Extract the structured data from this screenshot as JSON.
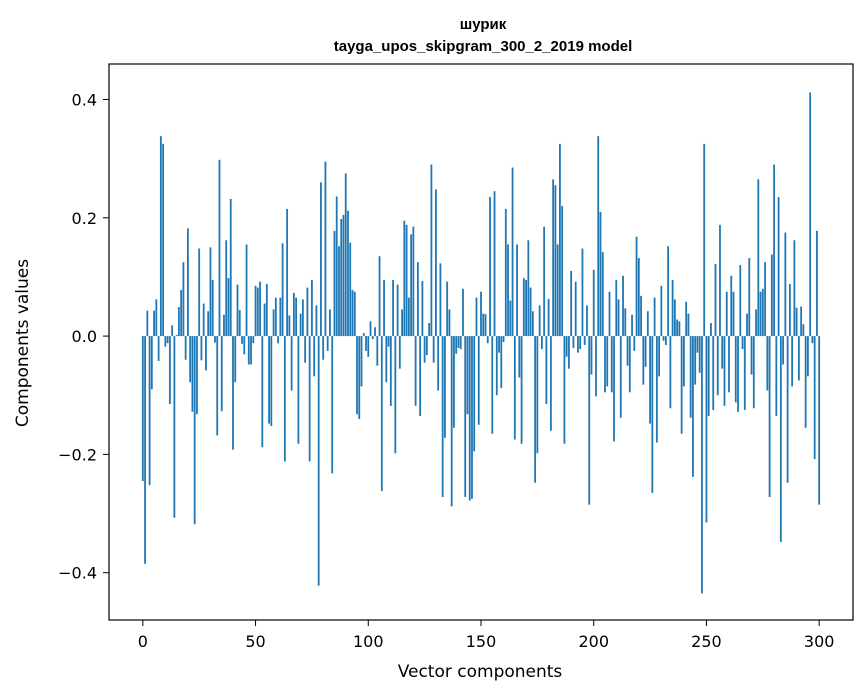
{
  "chart_data": {
    "type": "bar",
    "title": "шурик",
    "subtitle": "tayga_upos_skipgram_300_2_2019 model",
    "xlabel": "Vector components",
    "ylabel": "Components values",
    "xlim": [
      -15,
      315
    ],
    "ylim": [
      -0.48,
      0.46
    ],
    "xticks": [
      0,
      50,
      100,
      150,
      200,
      250,
      300
    ],
    "yticks": [
      -0.4,
      -0.2,
      0.0,
      0.2,
      0.4
    ],
    "xtick_labels": [
      "0",
      "50",
      "100",
      "150",
      "200",
      "250",
      "300"
    ],
    "ytick_labels": [
      "−0.4",
      "−0.2",
      "0.0",
      "0.2",
      "0.4"
    ],
    "bar_color": "#1f77b4",
    "values": [
      -0.245,
      -0.385,
      0.043,
      -0.252,
      -0.09,
      0.043,
      0.062,
      -0.042,
      0.338,
      0.325,
      -0.018,
      -0.012,
      -0.115,
      0.018,
      -0.307,
      0.002,
      0.049,
      0.078,
      0.125,
      -0.04,
      0.182,
      -0.078,
      -0.128,
      -0.318,
      -0.132,
      0.148,
      -0.041,
      0.055,
      -0.058,
      0.042,
      0.15,
      0.095,
      -0.011,
      -0.168,
      0.298,
      -0.127,
      0.036,
      0.162,
      0.098,
      0.232,
      -0.192,
      -0.078,
      0.087,
      0.044,
      -0.013,
      -0.031,
      0.155,
      -0.048,
      -0.048,
      -0.012,
      0.085,
      0.082,
      0.092,
      -0.188,
      0.055,
      0.088,
      -0.148,
      -0.152,
      0.045,
      0.065,
      -0.012,
      0.065,
      0.157,
      -0.212,
      0.215,
      0.035,
      -0.092,
      0.073,
      0.065,
      -0.182,
      0.038,
      0.062,
      -0.045,
      0.082,
      -0.212,
      0.095,
      -0.068,
      0.052,
      -0.422,
      0.26,
      -0.04,
      0.295,
      -0.025,
      0.045,
      -0.232,
      0.178,
      0.236,
      0.152,
      0.198,
      0.205,
      0.275,
      0.212,
      0.158,
      0.078,
      0.075,
      -0.132,
      -0.14,
      -0.085,
      0.005,
      -0.025,
      -0.035,
      0.025,
      -0.005,
      0.015,
      -0.05,
      0.135,
      -0.262,
      0.095,
      -0.078,
      -0.018,
      -0.118,
      0.095,
      -0.198,
      0.087,
      -0.055,
      0.045,
      0.195,
      0.188,
      0.065,
      0.172,
      0.185,
      -0.118,
      0.125,
      -0.135,
      0.093,
      -0.045,
      -0.032,
      0.022,
      0.29,
      -0.045,
      0.248,
      -0.092,
      0.123,
      -0.272,
      -0.172,
      0.092,
      0.045,
      -0.288,
      -0.155,
      -0.03,
      -0.02,
      -0.022,
      0.08,
      -0.272,
      -0.132,
      -0.278,
      -0.275,
      -0.195,
      0.065,
      -0.15,
      0.075,
      0.038,
      0.037,
      -0.012,
      0.235,
      -0.165,
      0.245,
      -0.1,
      -0.028,
      -0.088,
      -0.01,
      0.215,
      0.155,
      0.06,
      0.285,
      -0.175,
      0.155,
      -0.07,
      -0.182,
      0.098,
      0.095,
      0.162,
      0.082,
      0.042,
      -0.248,
      -0.198,
      0.052,
      -0.022,
      0.185,
      -0.115,
      0.063,
      -0.16,
      0.265,
      0.255,
      0.155,
      0.325,
      0.22,
      -0.182,
      -0.035,
      -0.055,
      0.11,
      -0.02,
      0.092,
      -0.028,
      -0.022,
      0.148,
      -0.015,
      0.052,
      -0.285,
      -0.065,
      0.112,
      -0.102,
      0.338,
      0.21,
      0.142,
      -0.095,
      -0.085,
      0.075,
      -0.095,
      -0.178,
      0.095,
      0.062,
      -0.138,
      0.102,
      0.047,
      -0.05,
      -0.095,
      0.036,
      -0.025,
      0.168,
      0.132,
      0.068,
      -0.082,
      -0.052,
      0.042,
      -0.148,
      -0.265,
      0.065,
      -0.18,
      -0.068,
      0.085,
      -0.008,
      -0.015,
      0.152,
      -0.122,
      0.095,
      0.062,
      0.028,
      0.025,
      -0.165,
      -0.085,
      0.058,
      0.038,
      -0.138,
      -0.238,
      -0.082,
      -0.028,
      -0.062,
      -0.435,
      0.325,
      -0.315,
      -0.135,
      0.022,
      -0.125,
      0.122,
      -0.1,
      0.188,
      -0.055,
      -0.118,
      0.075,
      -0.095,
      0.102,
      0.075,
      -0.112,
      -0.128,
      0.12,
      -0.022,
      -0.125,
      0.038,
      0.132,
      -0.065,
      -0.122,
      0.045,
      0.265,
      0.075,
      0.08,
      0.125,
      -0.092,
      -0.272,
      0.138,
      0.29,
      -0.135,
      0.235,
      -0.348,
      -0.048,
      0.175,
      -0.248,
      0.088,
      -0.085,
      0.162,
      0.048,
      -0.075,
      0.05,
      0.02,
      -0.155,
      -0.068,
      0.412,
      -0.012,
      -0.208,
      0.178,
      -0.285
    ]
  }
}
